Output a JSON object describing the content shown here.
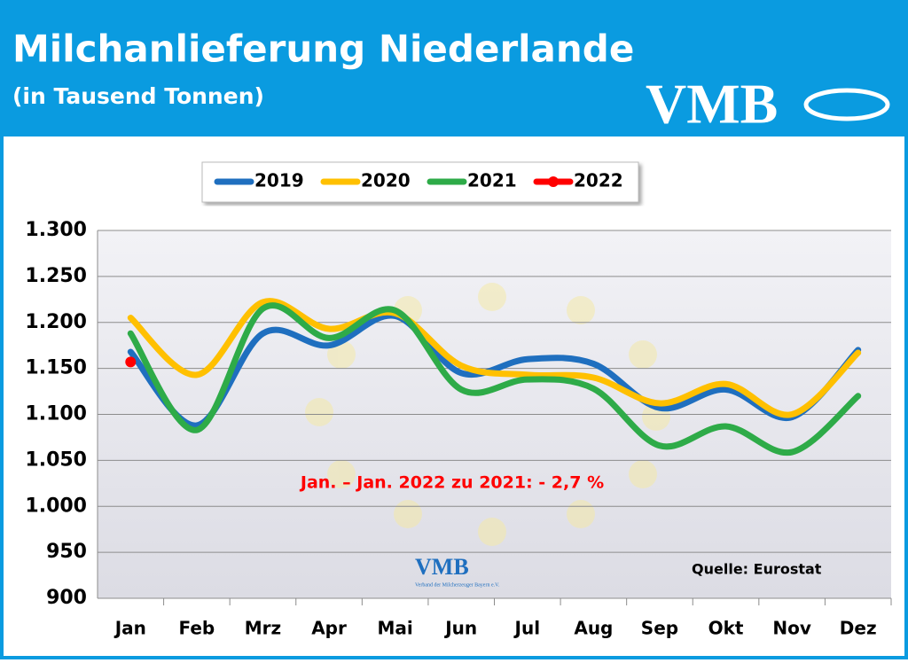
{
  "header": {
    "title": "Milchanlieferung Niederlande",
    "subtitle": "(in Tausend Tonnen)",
    "logo": "VMB"
  },
  "chart_data": {
    "type": "line",
    "categories": [
      "Jan",
      "Feb",
      "Mrz",
      "Apr",
      "Mai",
      "Jun",
      "Jul",
      "Aug",
      "Sep",
      "Okt",
      "Nov",
      "Dez"
    ],
    "series": [
      {
        "name": "2019",
        "color": "#1f6fbf",
        "values": [
          1168,
          1088,
          1188,
          1175,
          1207,
          1145,
          1160,
          1155,
          1107,
          1127,
          1097,
          1170
        ]
      },
      {
        "name": "2020",
        "color": "#ffc000",
        "values": [
          1205,
          1143,
          1222,
          1193,
          1210,
          1153,
          1143,
          1140,
          1112,
          1133,
          1100,
          1167
        ]
      },
      {
        "name": "2021",
        "color": "#2eab48",
        "values": [
          1188,
          1083,
          1215,
          1183,
          1213,
          1127,
          1138,
          1128,
          1066,
          1087,
          1059,
          1120
        ]
      },
      {
        "name": "2022",
        "color": "#ff0000",
        "values": [
          1157,
          null,
          null,
          null,
          null,
          null,
          null,
          null,
          null,
          null,
          null,
          null
        ]
      }
    ],
    "ylim": [
      900,
      1300
    ],
    "yticks": [
      {
        "value": 900,
        "label": "900"
      },
      950,
      {
        "value": 1000,
        "label": "1.000"
      },
      {
        "value": 1050,
        "label": "1.050"
      },
      {
        "value": 1100,
        "label": "1.100"
      },
      {
        "value": 1150,
        "label": "1.150"
      },
      {
        "value": 1200,
        "label": "1.200"
      },
      {
        "value": 1250,
        "label": "1.250"
      },
      {
        "value": 1300,
        "label": "1.300"
      }
    ],
    "grid": true,
    "legend": "top",
    "annotation": "Jan. – Jan. 2022 zu 2021: - 2,7 %",
    "source": "Quelle: Eurostat",
    "watermark": {
      "logo": "VMB",
      "text": "Verband der Milcherzeuger Bayern e.V."
    }
  }
}
